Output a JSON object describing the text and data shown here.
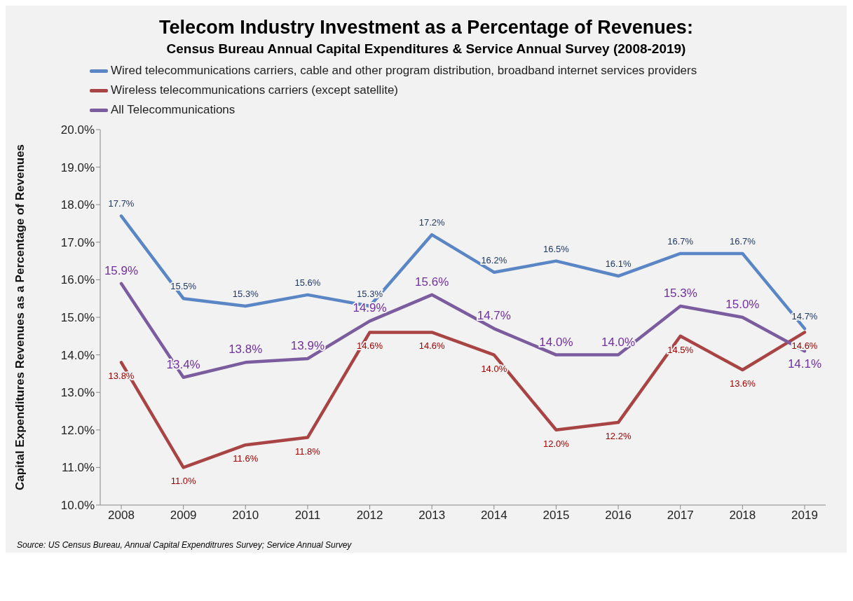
{
  "chart_data": {
    "type": "line",
    "title": "Telecom Industry Investment as a Percentage of Revenues:",
    "subtitle": "Census Bureau Annual Capital Expenditures & Service Annual Survey (2008-2019)",
    "ylabel": "Capital Expenditures Revenues as a Percentage of Revenues",
    "annotations": [
      "Source: US Census Bureau, Annual Capital Expenditrures Survey; Service Annual Survey"
    ],
    "categories": [
      "2008",
      "2009",
      "2010",
      "2011",
      "2012",
      "2013",
      "2014",
      "2015",
      "2016",
      "2017",
      "2018",
      "2019"
    ],
    "ylim": [
      10,
      20
    ],
    "yticks": [
      {
        "value": 10,
        "label": "10.0%"
      },
      {
        "value": 11,
        "label": "11.0%"
      },
      {
        "value": 12,
        "label": "12.0%"
      },
      {
        "value": 13,
        "label": "13.0%"
      },
      {
        "value": 14,
        "label": "14.0%"
      },
      {
        "value": 15,
        "label": "15.0%"
      },
      {
        "value": 16,
        "label": "16.0%"
      },
      {
        "value": 17,
        "label": "17.0%"
      },
      {
        "value": 18,
        "label": "18.0%"
      },
      {
        "value": 19,
        "label": "19.0%"
      },
      {
        "value": 20,
        "label": "20.0%"
      }
    ],
    "grid": false,
    "legend": "top left",
    "marker": "none",
    "line_style": "solid",
    "series": [
      {
        "name": "Wired telecommunications carriers, cable and other program distribution, broadband internet services providers",
        "color": "#5b86c5",
        "values": [
          17.7,
          15.5,
          15.3,
          15.6,
          15.3,
          17.2,
          16.2,
          16.5,
          16.1,
          16.7,
          16.7,
          14.7
        ],
        "value_labels": [
          "17.7%",
          "15.5%",
          "15.3%",
          "15.6%",
          "15.3%",
          "17.2%",
          "16.2%",
          "16.5%",
          "16.1%",
          "16.7%",
          "16.7%",
          "14.7%"
        ]
      },
      {
        "name": "Wireless telecommunications carriers (except satellite)",
        "color": "#a94444",
        "values": [
          13.8,
          11.0,
          11.6,
          11.8,
          14.6,
          14.6,
          14.0,
          12.0,
          12.2,
          14.5,
          13.6,
          14.6
        ],
        "value_labels": [
          "13.8%",
          "11.0%",
          "11.6%",
          "11.8%",
          "14.6%",
          "14.6%",
          "14.0%",
          "12.0%",
          "12.2%",
          "14.5%",
          "13.6%",
          "14.6%"
        ]
      },
      {
        "name": "All Telecommunications",
        "color": "#7b5c9e",
        "values": [
          15.9,
          13.4,
          13.8,
          13.9,
          14.9,
          15.6,
          14.7,
          14.0,
          14.0,
          15.3,
          15.0,
          14.1
        ],
        "value_labels": [
          "15.9%",
          "13.4%",
          "13.8%",
          "13.9%",
          "14.9%",
          "15.6%",
          "14.7%",
          "14.0%",
          "14.0%",
          "15.3%",
          "15.0%",
          "14.1%"
        ]
      }
    ]
  }
}
